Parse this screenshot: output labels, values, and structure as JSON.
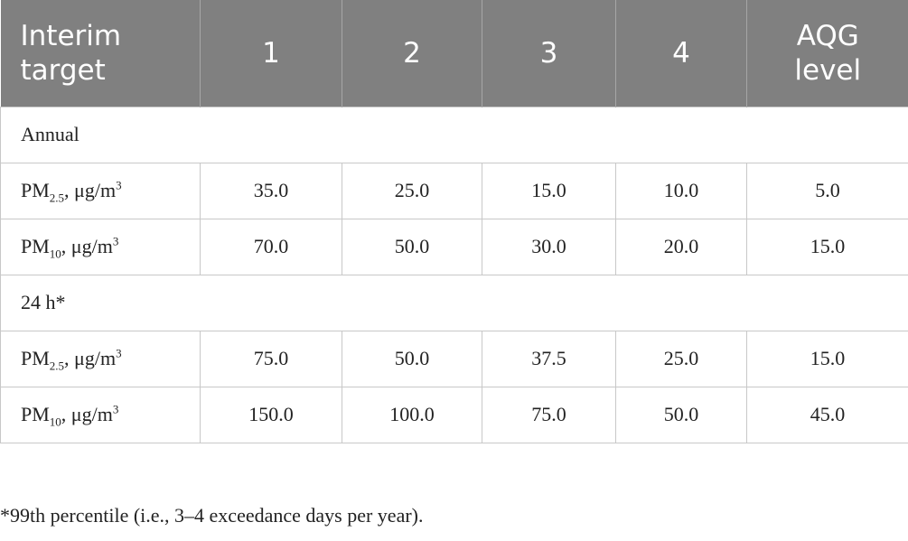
{
  "table": {
    "header": [
      "Interim target",
      "1",
      "2",
      "3",
      "4",
      "AQG level"
    ],
    "sections": [
      {
        "title": "Annual",
        "rows": [
          {
            "label": {
              "base": "PM",
              "sub": "2.5",
              "unit": ", μg/m",
              "sup": "3"
            },
            "cells": [
              "35.0",
              "25.0",
              "15.0",
              "10.0",
              "5.0"
            ]
          },
          {
            "label": {
              "base": "PM",
              "sub": "10",
              "unit": ", μg/m",
              "sup": "3"
            },
            "cells": [
              "70.0",
              "50.0",
              "30.0",
              "20.0",
              "15.0"
            ]
          }
        ]
      },
      {
        "title": "24 h*",
        "rows": [
          {
            "label": {
              "base": "PM",
              "sub": "2.5",
              "unit": ", μg/m",
              "sup": "3"
            },
            "cells": [
              "75.0",
              "50.0",
              "37.5",
              "25.0",
              "15.0"
            ]
          },
          {
            "label": {
              "base": "PM",
              "sub": "10",
              "unit": ", μg/m",
              "sup": "3"
            },
            "cells": [
              "150.0",
              "100.0",
              "75.0",
              "50.0",
              "45.0"
            ]
          }
        ]
      }
    ]
  },
  "footnote": "*99th percentile (i.e., 3–4 exceedance days per year)."
}
